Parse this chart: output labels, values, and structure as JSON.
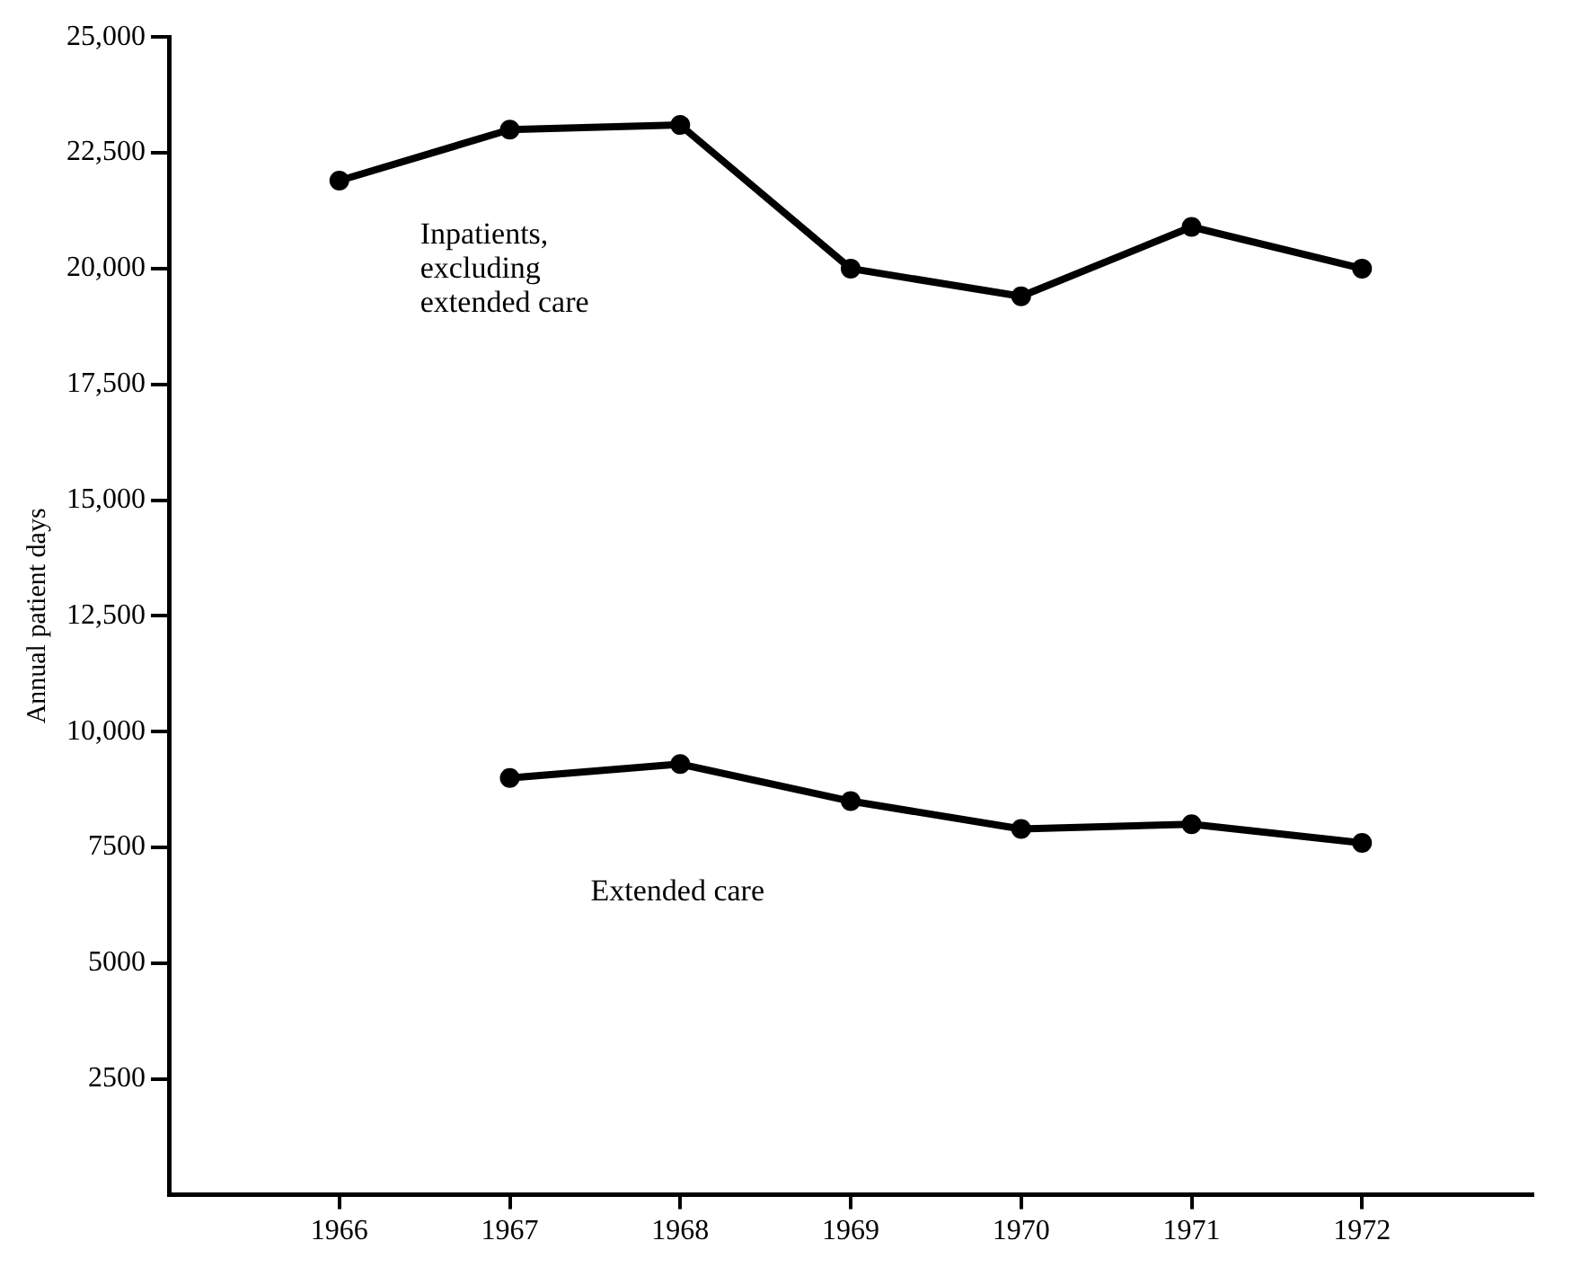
{
  "chart_data": {
    "type": "line",
    "ylabel": "Annual patient days",
    "x": [
      1966,
      1967,
      1968,
      1969,
      1970,
      1971,
      1972
    ],
    "series": [
      {
        "name": "Inpatients, excluding extended care",
        "color": "#000000",
        "values": [
          21900,
          23000,
          23100,
          20000,
          19400,
          20900,
          20000
        ]
      },
      {
        "name": "Extended care",
        "color": "#000000",
        "values": [
          null,
          9000,
          9300,
          8500,
          7900,
          8000,
          7600
        ]
      }
    ],
    "xlim": [
      1965,
      1973
    ],
    "xticks": [
      1966,
      1967,
      1968,
      1969,
      1970,
      1971,
      1972
    ],
    "ylim": [
      0,
      25000
    ],
    "yticks": [
      {
        "value": 2500,
        "label": "2500"
      },
      5000,
      7500,
      {
        "value": 10000,
        "label": "10,000"
      },
      {
        "value": 12500,
        "label": "12,500"
      },
      {
        "value": 15000,
        "label": "15,000"
      },
      {
        "value": 17500,
        "label": "17,500"
      },
      {
        "value": 20000,
        "label": "20,000"
      },
      {
        "value": 22500,
        "label": "22,500"
      },
      {
        "value": 25000,
        "label": "25,000"
      }
    ],
    "grid": false,
    "legend": false,
    "marker": "circle",
    "line_style": "solid"
  }
}
